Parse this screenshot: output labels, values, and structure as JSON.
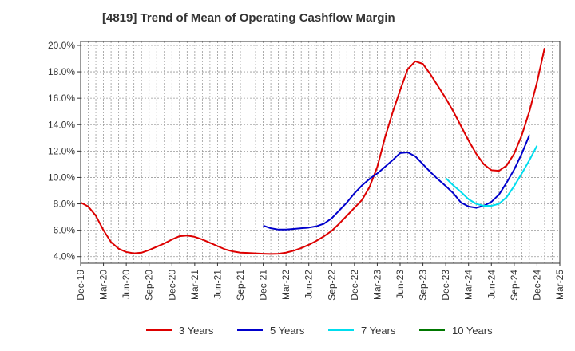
{
  "chart_data": {
    "type": "line",
    "title": "[4819]  Trend of Mean of Operating Cashflow Margin",
    "xlabel": "",
    "ylabel": "",
    "x_ticks": [
      "Dec-19",
      "Mar-20",
      "Jun-20",
      "Sep-20",
      "Dec-20",
      "Mar-21",
      "Jun-21",
      "Sep-21",
      "Dec-21",
      "Mar-22",
      "Jun-22",
      "Sep-22",
      "Dec-22",
      "Mar-23",
      "Jun-23",
      "Sep-23",
      "Dec-23",
      "Mar-24",
      "Jun-24",
      "Sep-24",
      "Dec-24",
      "Mar-25"
    ],
    "y_ticks": [
      "4.0%",
      "6.0%",
      "8.0%",
      "10.0%",
      "12.0%",
      "14.0%",
      "16.0%",
      "18.0%",
      "20.0%"
    ],
    "ylim": [
      3.5,
      20.3
    ],
    "grid": true,
    "legend_position": "bottom",
    "series": [
      {
        "name": "3 Years",
        "color": "#dd0000",
        "start_index": 0,
        "values": [
          8.1,
          7.8,
          7.1,
          6.0,
          5.1,
          4.6,
          4.35,
          4.25,
          4.3,
          4.5,
          4.75,
          5.0,
          5.3,
          5.55,
          5.6,
          5.5,
          5.3,
          5.05,
          4.8,
          4.55,
          4.4,
          4.3,
          4.28,
          4.25,
          4.22,
          4.2,
          4.22,
          4.3,
          4.45,
          4.65,
          4.9,
          5.2,
          5.55,
          5.95,
          6.5,
          7.1,
          7.7,
          8.3,
          9.3,
          10.8,
          13.0,
          14.9,
          16.6,
          18.2,
          18.8,
          18.6,
          17.8,
          16.9,
          16.0,
          15.0,
          13.9,
          12.8,
          11.8,
          11.0,
          10.55,
          10.5,
          10.9,
          11.8,
          13.2,
          15.0,
          17.2,
          19.8
        ]
      },
      {
        "name": "5 Years",
        "color": "#0000cc",
        "start_index": 24,
        "values": [
          6.35,
          6.15,
          6.05,
          6.05,
          6.1,
          6.15,
          6.2,
          6.3,
          6.5,
          6.9,
          7.5,
          8.1,
          8.8,
          9.4,
          9.9,
          10.3,
          10.8,
          11.3,
          11.85,
          11.9,
          11.6,
          11.0,
          10.4,
          9.85,
          9.35,
          8.8,
          8.1,
          7.8,
          7.7,
          7.85,
          8.15,
          8.7,
          9.6,
          10.6,
          11.8,
          13.2
        ]
      },
      {
        "name": "7 Years",
        "color": "#00ddee",
        "start_index": 48,
        "values": [
          9.95,
          9.4,
          8.9,
          8.35,
          8.0,
          7.85,
          7.85,
          8.0,
          8.5,
          9.35,
          10.3,
          11.3,
          12.4
        ]
      },
      {
        "name": "10 Years",
        "color": "#007700",
        "start_index": 0,
        "values": []
      }
    ]
  }
}
